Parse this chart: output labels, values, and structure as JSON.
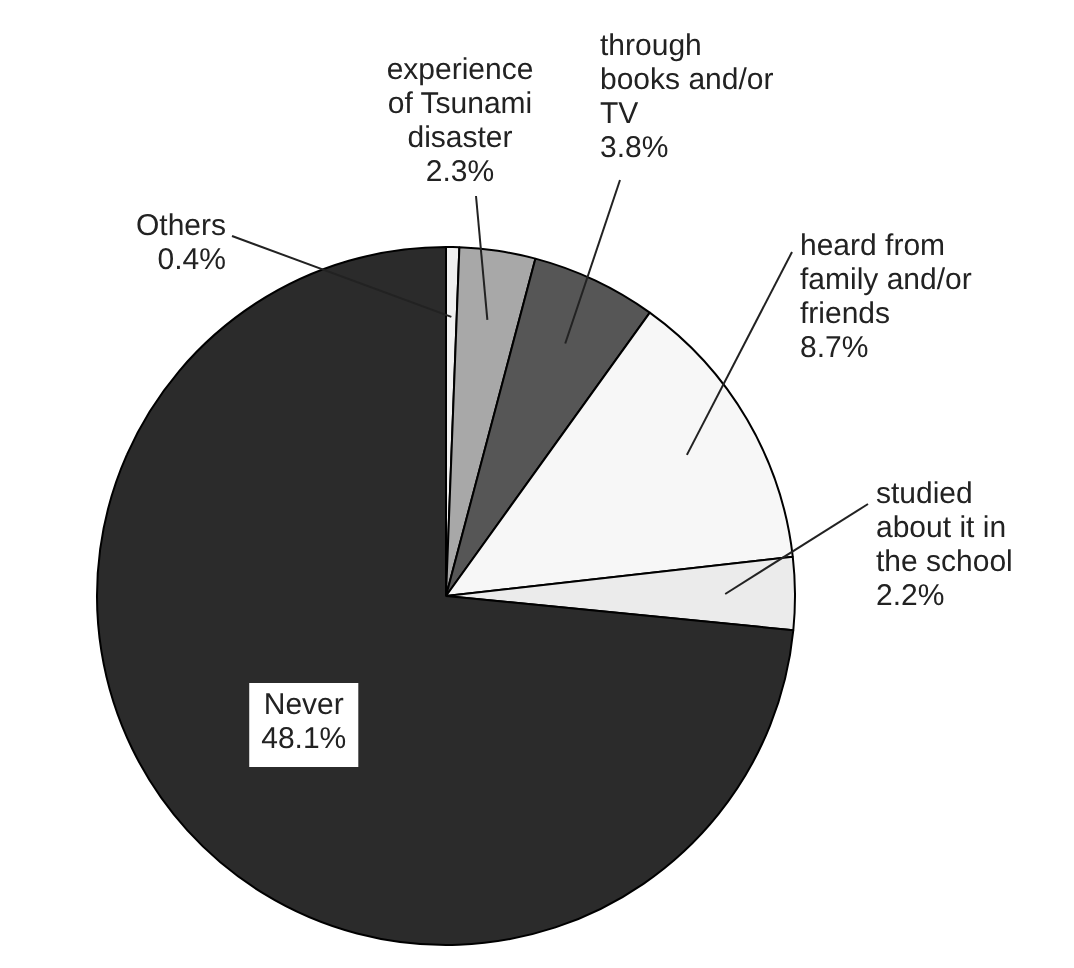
{
  "chart_data": {
    "type": "pie",
    "categories": [
      "Others",
      "experience of Tsunami disaster",
      "through books and/or TV",
      "heard from family and/or friends",
      "studied about it in the school",
      "Never"
    ],
    "values": [
      0.4,
      2.3,
      3.8,
      8.7,
      2.2,
      48.1
    ],
    "value_labels": [
      "0.4%",
      "2.3%",
      "3.8%",
      "8.7%",
      "2.2%",
      "48.1%"
    ],
    "colors": [
      "#f0f0f0",
      "#a8a8a8",
      "#565656",
      "#f7f7f7",
      "#ebebeb",
      "#2b2b2b"
    ],
    "legend": false
  }
}
